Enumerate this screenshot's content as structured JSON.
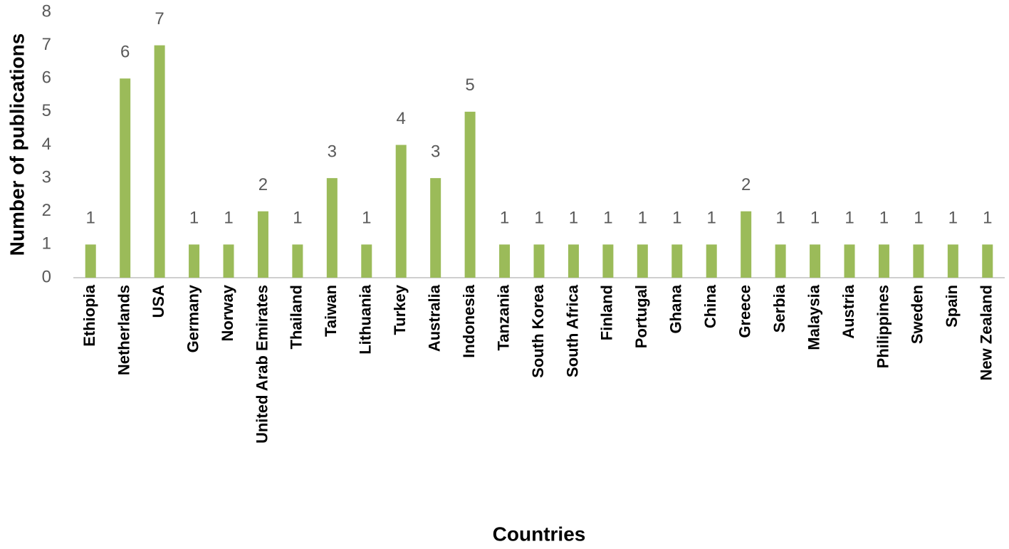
{
  "chart_data": {
    "type": "bar",
    "x_label": "Countries",
    "y_label": "Number of publications",
    "categories": [
      "Ethiopia",
      "Netherlands",
      "USA",
      "Germany",
      "Norway",
      "United Arab Emirates",
      "Thailand",
      "Taiwan",
      "Lithuania",
      "Turkey",
      "Australia",
      "Indonesia",
      "Tanzania",
      "South Korea",
      "South Africa",
      "Finland",
      "Portugal",
      "Ghana",
      "China",
      "Greece",
      "Serbia",
      "Malaysia",
      "Austria",
      "Philippines",
      "Sweden",
      "Spain",
      "New Zealand"
    ],
    "values": [
      1,
      6,
      7,
      1,
      1,
      2,
      1,
      3,
      1,
      4,
      3,
      5,
      1,
      1,
      1,
      1,
      1,
      1,
      1,
      2,
      1,
      1,
      1,
      1,
      1,
      1,
      1
    ],
    "color": "#9bbb59",
    "ylim": [
      0,
      8
    ],
    "yticks": [
      0,
      1,
      2,
      3,
      4,
      5,
      6,
      7,
      8
    ],
    "grid": false
  }
}
